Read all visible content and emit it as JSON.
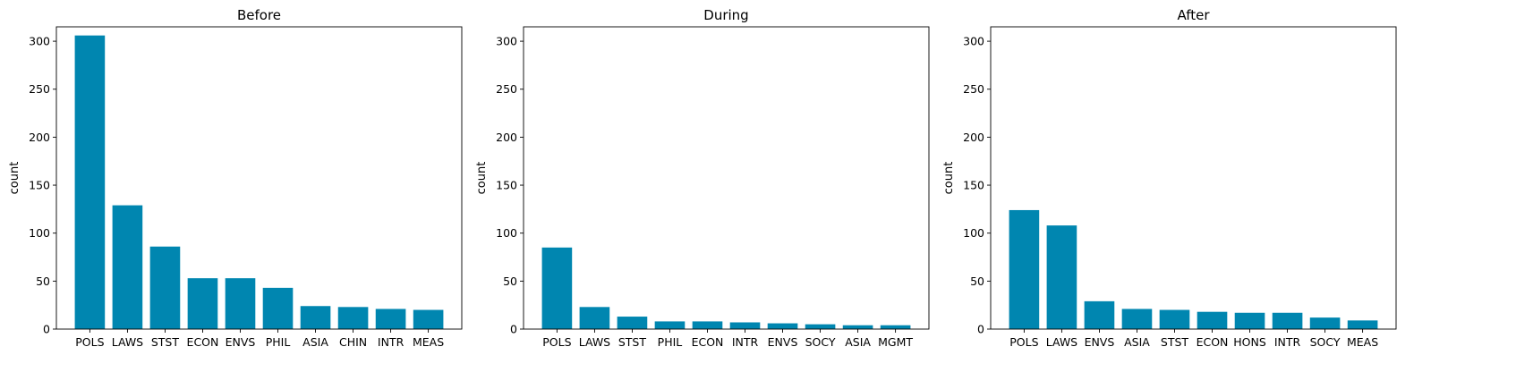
{
  "figure": {
    "bar_color": "#0086B0"
  },
  "chart_data": [
    {
      "type": "bar",
      "title": "Before",
      "xlabel": "",
      "ylabel": "count",
      "ylim": [
        0,
        315
      ],
      "yticks": [
        0,
        50,
        100,
        150,
        200,
        250,
        300
      ],
      "categories": [
        "POLS",
        "LAWS",
        "STST",
        "ECON",
        "ENVS",
        "PHIL",
        "ASIA",
        "CHIN",
        "INTR",
        "MEAS"
      ],
      "values": [
        306,
        129,
        86,
        53,
        53,
        43,
        24,
        23,
        21,
        20
      ]
    },
    {
      "type": "bar",
      "title": "During",
      "xlabel": "",
      "ylabel": "count",
      "ylim": [
        0,
        315
      ],
      "yticks": [
        0,
        50,
        100,
        150,
        200,
        250,
        300
      ],
      "categories": [
        "POLS",
        "LAWS",
        "STST",
        "PHIL",
        "ECON",
        "INTR",
        "ENVS",
        "SOCY",
        "ASIA",
        "MGMT"
      ],
      "values": [
        85,
        23,
        13,
        8,
        8,
        7,
        6,
        5,
        4,
        4
      ]
    },
    {
      "type": "bar",
      "title": "After",
      "xlabel": "",
      "ylabel": "count",
      "ylim": [
        0,
        315
      ],
      "yticks": [
        0,
        50,
        100,
        150,
        200,
        250,
        300
      ],
      "categories": [
        "POLS",
        "LAWS",
        "ENVS",
        "ASIA",
        "STST",
        "ECON",
        "HONS",
        "INTR",
        "SOCY",
        "MEAS"
      ],
      "values": [
        124,
        108,
        29,
        21,
        20,
        18,
        17,
        17,
        12,
        9
      ]
    }
  ]
}
